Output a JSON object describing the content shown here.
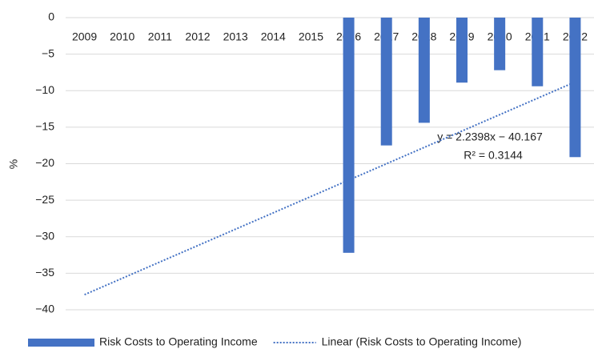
{
  "chart_data": {
    "type": "bar",
    "categories": [
      "2009",
      "2010",
      "2011",
      "2012",
      "2013",
      "2014",
      "2015",
      "2016",
      "2017",
      "2018",
      "2019",
      "2020",
      "2021",
      "2022"
    ],
    "series": [
      {
        "name": "Risk Costs to Operating Income",
        "type": "bar",
        "color": "#4472c4",
        "values": [
          null,
          null,
          null,
          null,
          null,
          null,
          null,
          -32.2,
          -17.5,
          -14.4,
          -8.9,
          -7.2,
          -9.4,
          -19.1
        ]
      },
      {
        "name": "Linear (Risk Costs to Operating Income)",
        "type": "line",
        "color": "#4472c4",
        "dash": "dotted",
        "values": [
          -37.93,
          -35.69,
          -33.45,
          -31.21,
          -28.97,
          -26.73,
          -24.49,
          -22.25,
          -20.01,
          -17.77,
          -15.53,
          -13.29,
          -11.05,
          -8.81
        ]
      }
    ],
    "ylabel": "%",
    "ylim": [
      -40,
      0
    ],
    "yticks": [
      0,
      {
        "value": -5,
        "label": "−5"
      },
      {
        "value": -10,
        "label": "−10"
      },
      {
        "value": -15,
        "label": "−15"
      },
      {
        "value": -20,
        "label": "−20"
      },
      {
        "value": -25,
        "label": "−25"
      },
      {
        "value": -30,
        "label": "−30"
      },
      {
        "value": -35,
        "label": "−35"
      },
      {
        "value": -40,
        "label": "−40"
      }
    ],
    "grid": true,
    "legend": "bottom",
    "annotations": [
      "y = 2.2398x − 40.167",
      "R² = 0.3144"
    ]
  }
}
